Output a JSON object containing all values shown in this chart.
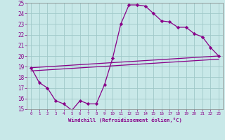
{
  "xlabel": "Windchill (Refroidissement éolien,°C)",
  "xlim": [
    -0.5,
    23.5
  ],
  "ylim": [
    15,
    25
  ],
  "xticks": [
    0,
    1,
    2,
    3,
    4,
    5,
    6,
    7,
    8,
    9,
    10,
    11,
    12,
    13,
    14,
    15,
    16,
    17,
    18,
    19,
    20,
    21,
    22,
    23
  ],
  "yticks": [
    15,
    16,
    17,
    18,
    19,
    20,
    21,
    22,
    23,
    24,
    25
  ],
  "line_color": "#880088",
  "bg_color": "#c8e8e8",
  "grid_color": "#a0c8c8",
  "zigzag_x": [
    0,
    1,
    2,
    3,
    4,
    5,
    6,
    7,
    8,
    9,
    10,
    11,
    12,
    13,
    14,
    15,
    16,
    17,
    18,
    19,
    20,
    21,
    22,
    23
  ],
  "zigzag_y": [
    18.9,
    17.5,
    17.0,
    15.8,
    15.5,
    14.9,
    15.8,
    15.5,
    15.5,
    17.3,
    19.8,
    23.0,
    24.8,
    24.8,
    24.7,
    24.0,
    23.3,
    23.2,
    22.7,
    22.7,
    22.1,
    21.8,
    20.8,
    20.0
  ],
  "line2_x": [
    0,
    23
  ],
  "line2_y": [
    18.9,
    20.0
  ],
  "line3_x": [
    0,
    23
  ],
  "line3_y": [
    18.6,
    19.7
  ]
}
